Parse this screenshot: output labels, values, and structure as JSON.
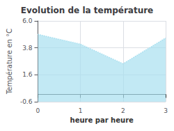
{
  "chart_data": {
    "type": "area",
    "title": "Evolution de la température",
    "xlabel": "heure par heure",
    "ylabel": "Température en °C",
    "x": [
      0,
      1,
      2,
      3
    ],
    "values": [
      4.9,
      4.1,
      2.5,
      4.6
    ],
    "color": "#a8dff0",
    "line_style": "dotted",
    "xlim": [
      0,
      3
    ],
    "xticks": [
      0,
      1,
      2,
      3
    ],
    "ylim": [
      -0.6,
      6.0
    ],
    "yticks": [
      -0.6,
      1.6,
      3.8,
      {
        "value": 6.0,
        "label": "6.0"
      }
    ],
    "grid": true
  }
}
